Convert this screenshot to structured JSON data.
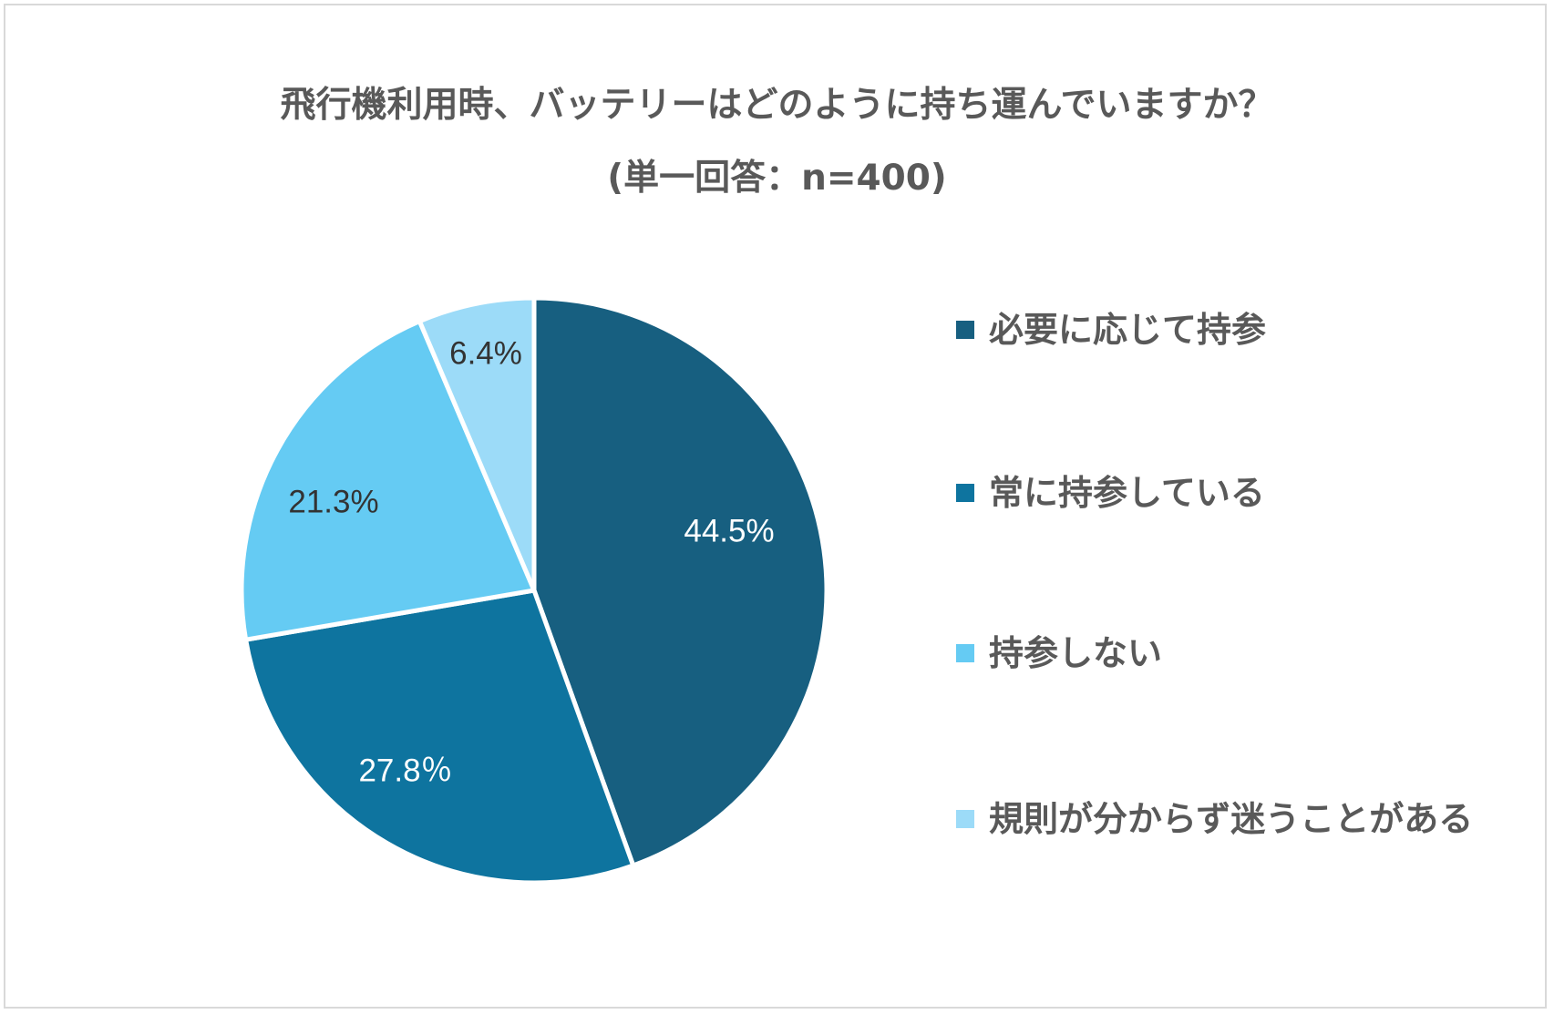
{
  "chart_data": {
    "type": "pie",
    "title": "飛行機利用時、バッテリーはどのように持ち運んでいますか？",
    "subtitle": "(単一回答：n=400)",
    "legend_position": "right",
    "slices": [
      {
        "name": "必要に応じて持参",
        "value": 44.5,
        "label": "44.5%",
        "color": "#175f80",
        "label_color": "#ffffff"
      },
      {
        "name": "常に持参している",
        "value": 27.8,
        "label": "27.8％",
        "color": "#0e749f",
        "label_color": "#ffffff"
      },
      {
        "name": "持参しない",
        "value": 21.3,
        "label": "21.3%",
        "color": "#65cbf3",
        "label_color": "#333333"
      },
      {
        "name": "規則が分からず迷うことがある",
        "value": 6.4,
        "label": "6.4%",
        "color": "#9cdbf8",
        "label_color": "#333333"
      }
    ]
  }
}
